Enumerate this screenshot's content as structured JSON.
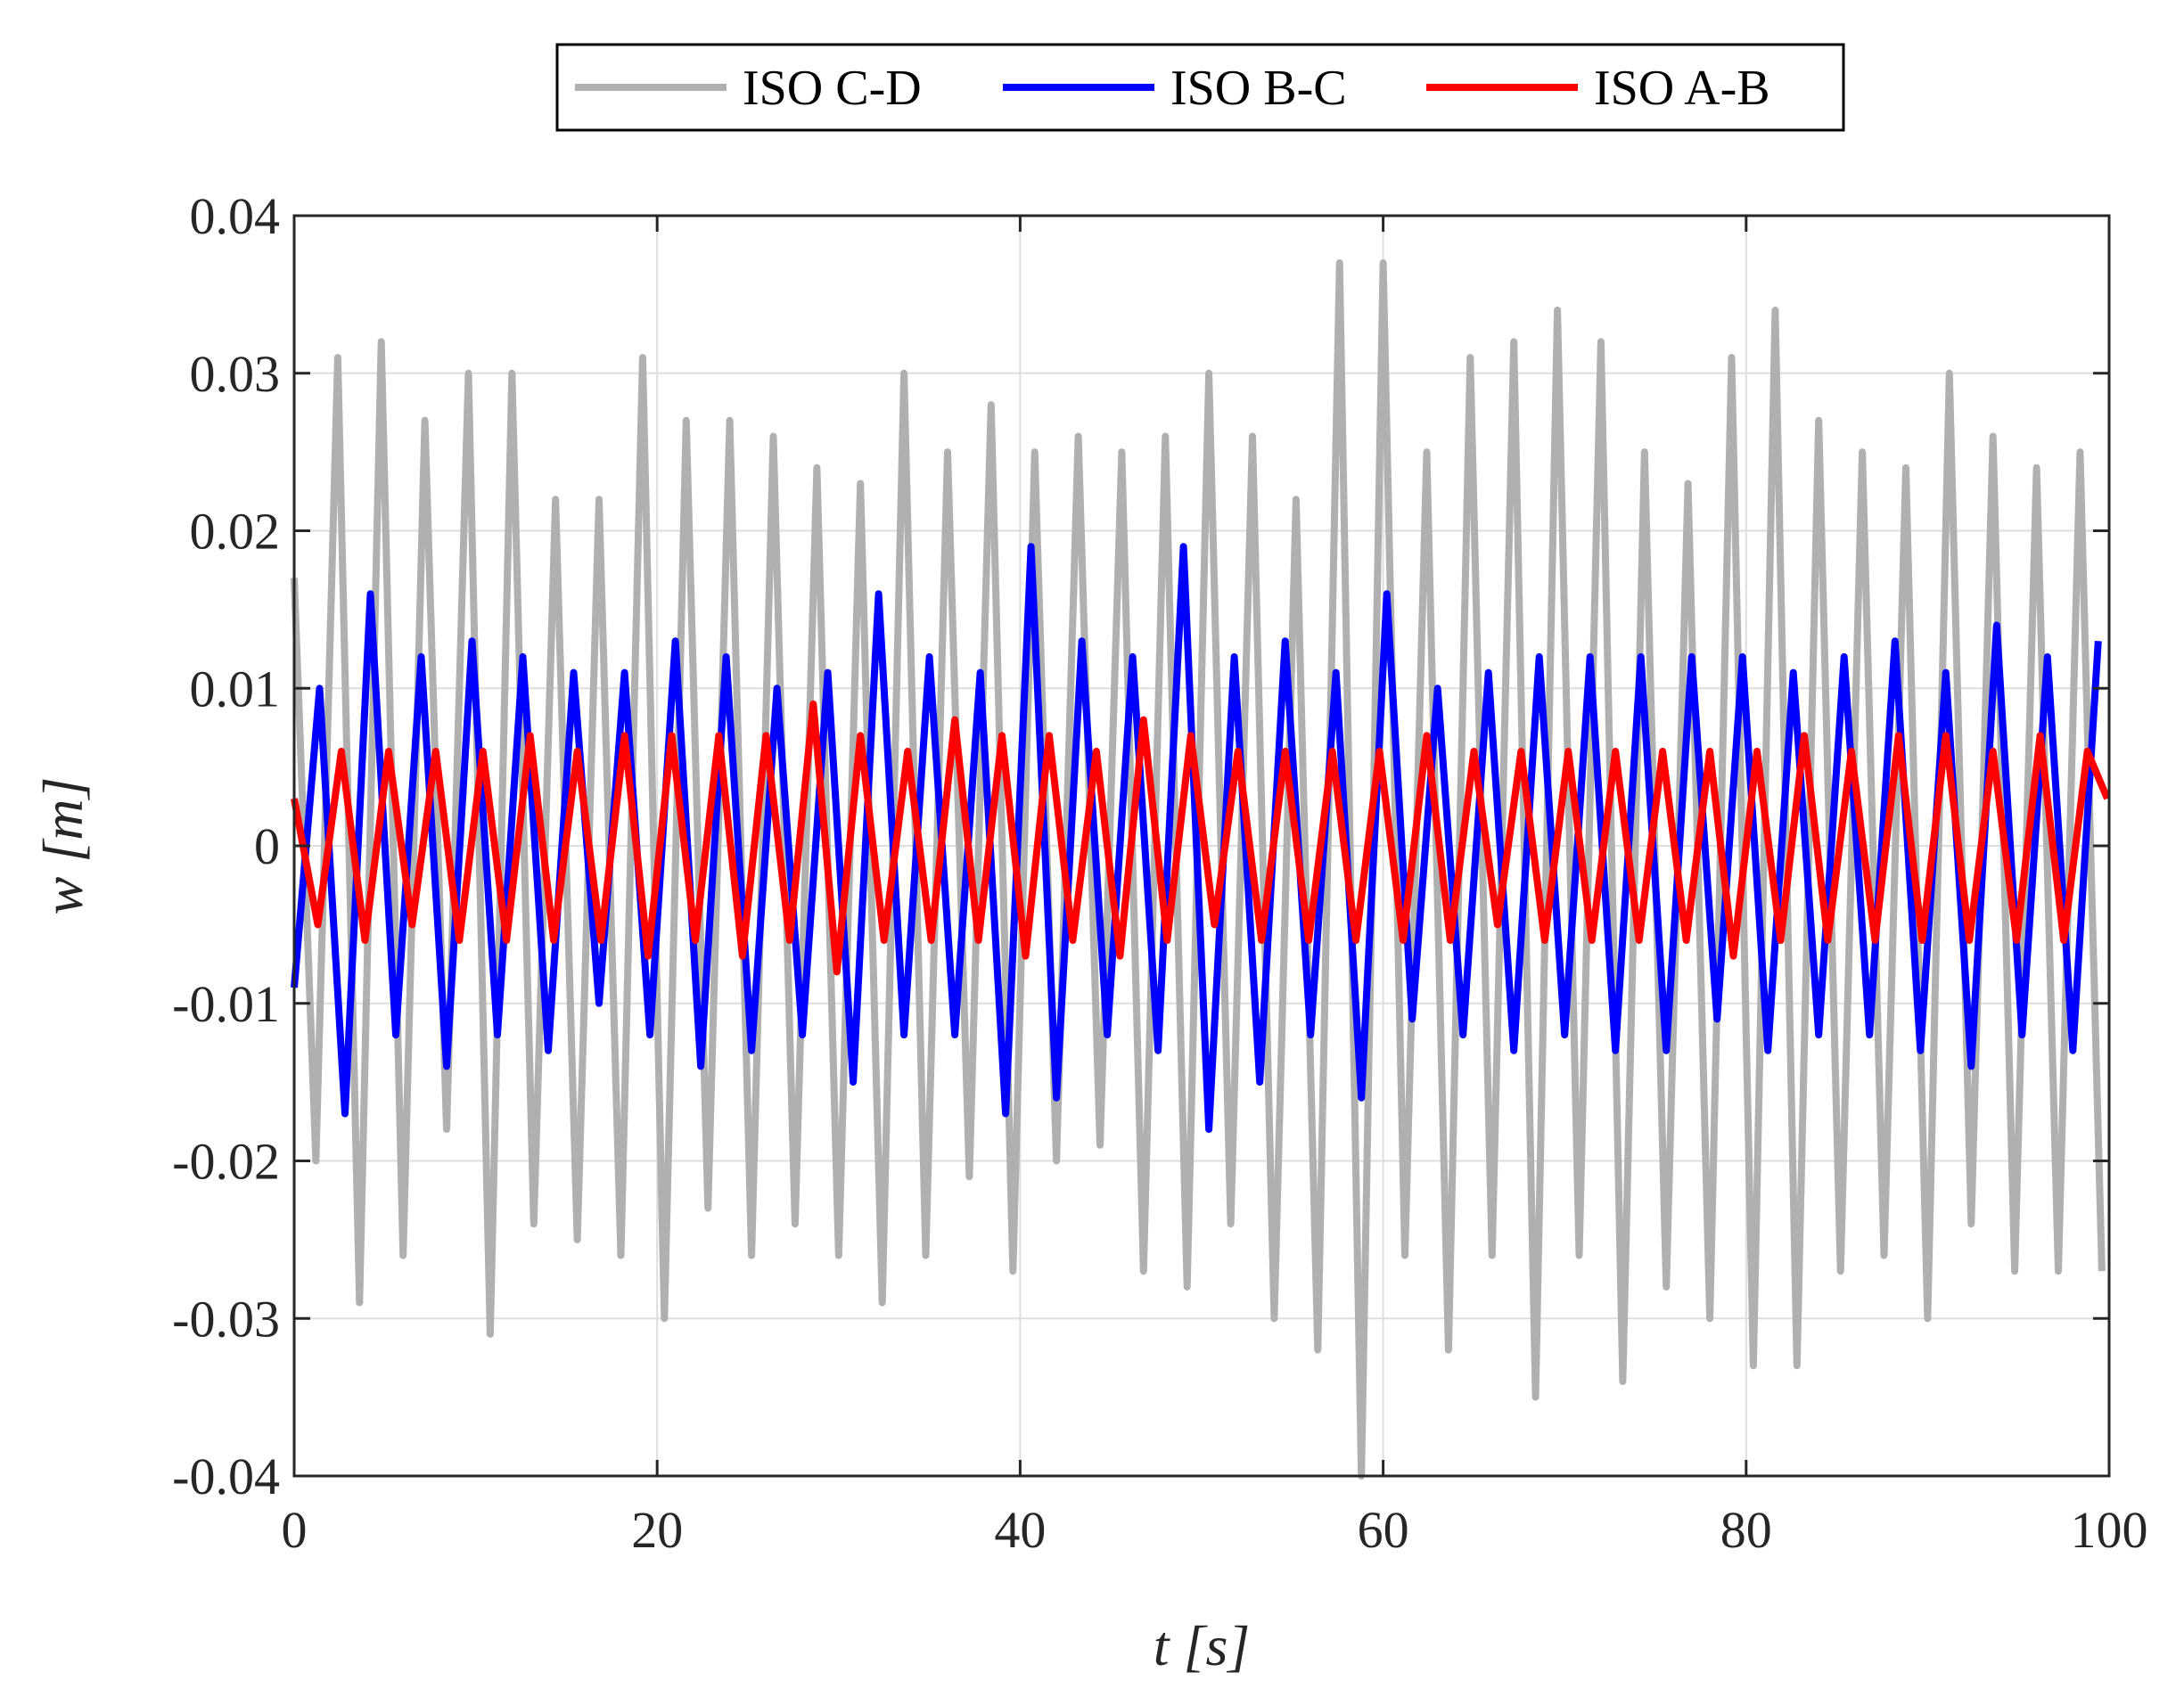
{
  "chart_data": {
    "type": "line",
    "xlabel": "t [s]",
    "ylabel": "w [m]",
    "xlim": [
      0,
      100
    ],
    "ylim": [
      -0.04,
      0.04
    ],
    "xticks": [
      0,
      20,
      40,
      60,
      80,
      100
    ],
    "xtick_labels": [
      "0",
      "20",
      "40",
      "60",
      "80",
      "100"
    ],
    "yticks": [
      -0.04,
      -0.03,
      -0.02,
      -0.01,
      0,
      0.01,
      0.02,
      0.03,
      0.04
    ],
    "ytick_labels": [
      "-0.04",
      "-0.03",
      "-0.02",
      "-0.01",
      "0",
      "0.01",
      "0.02",
      "0.03",
      "0.04"
    ],
    "grid": true,
    "legend_position": "top-center, outside, horizontal",
    "series": [
      {
        "name": "ISO C-D",
        "color": "#b0b0b0",
        "x": [
          0,
          1.2,
          2.4,
          3.6,
          4.8,
          6,
          7.2,
          8.4,
          9.6,
          10.8,
          12,
          13.2,
          14.4,
          15.6,
          16.8,
          18,
          19.2,
          20.4,
          21.6,
          22.8,
          24,
          25.2,
          26.4,
          27.6,
          28.8,
          30,
          31.2,
          32.4,
          33.6,
          34.8,
          36,
          37.2,
          38.4,
          39.6,
          40.8,
          42,
          43.2,
          44.4,
          45.6,
          46.8,
          48,
          49.2,
          50.4,
          51.6,
          52.8,
          54,
          55.2,
          56.4,
          57.6,
          58.8,
          60,
          61.2,
          62.4,
          63.6,
          64.8,
          66,
          67.2,
          68.4,
          69.6,
          70.8,
          72,
          73.2,
          74.4,
          75.6,
          76.8,
          78,
          79.2,
          80.4,
          81.6,
          82.8,
          84,
          85.2,
          86.4,
          87.6,
          88.8,
          90,
          91.2,
          92.4,
          93.6,
          94.8,
          96,
          97.2,
          98.4,
          99.6
        ],
        "y": [
          0.017,
          -0.02,
          0.031,
          -0.029,
          0.032,
          -0.026,
          0.027,
          -0.018,
          0.03,
          -0.031,
          0.03,
          -0.024,
          0.022,
          -0.025,
          0.022,
          -0.026,
          0.031,
          -0.03,
          0.027,
          -0.023,
          0.027,
          -0.026,
          0.026,
          -0.024,
          0.024,
          -0.026,
          0.023,
          -0.029,
          0.03,
          -0.026,
          0.025,
          -0.021,
          0.028,
          -0.027,
          0.025,
          -0.02,
          0.026,
          -0.019,
          0.025,
          -0.027,
          0.026,
          -0.028,
          0.03,
          -0.024,
          0.026,
          -0.03,
          0.022,
          -0.032,
          0.037,
          -0.04,
          0.037,
          -0.026,
          0.025,
          -0.032,
          0.031,
          -0.026,
          0.032,
          -0.035,
          0.034,
          -0.026,
          0.032,
          -0.034,
          0.025,
          -0.028,
          0.023,
          -0.03,
          0.031,
          -0.033,
          0.034,
          -0.033,
          0.027,
          -0.027,
          0.025,
          -0.026,
          0.024,
          -0.03,
          0.03,
          -0.024,
          0.026,
          -0.027,
          0.024,
          -0.027,
          0.025,
          -0.027
        ]
      },
      {
        "name": "ISO B-C",
        "color": "#0000ff",
        "x": [
          0,
          1.4,
          2.8,
          4.2,
          5.6,
          7,
          8.4,
          9.8,
          11.2,
          12.6,
          14,
          15.4,
          16.8,
          18.2,
          19.6,
          21,
          22.4,
          23.8,
          25.2,
          26.6,
          28,
          29.4,
          30.8,
          32.2,
          33.6,
          35,
          36.4,
          37.8,
          39.2,
          40.6,
          42,
          43.4,
          44.8,
          46.2,
          47.6,
          49,
          50.4,
          51.8,
          53.2,
          54.6,
          56,
          57.4,
          58.8,
          60.2,
          61.6,
          63,
          64.4,
          65.8,
          67.2,
          68.6,
          70,
          71.4,
          72.8,
          74.2,
          75.6,
          77,
          78.4,
          79.8,
          81.2,
          82.6,
          84,
          85.4,
          86.8,
          88.2,
          89.6,
          91,
          92.4,
          93.8,
          95.2,
          96.6,
          98,
          99.4
        ],
        "y": [
          -0.009,
          0.01,
          -0.017,
          0.016,
          -0.012,
          0.012,
          -0.014,
          0.013,
          -0.012,
          0.012,
          -0.013,
          0.011,
          -0.01,
          0.011,
          -0.012,
          0.013,
          -0.014,
          0.012,
          -0.013,
          0.01,
          -0.012,
          0.011,
          -0.015,
          0.016,
          -0.012,
          0.012,
          -0.012,
          0.011,
          -0.017,
          0.019,
          -0.016,
          0.013,
          -0.012,
          0.012,
          -0.013,
          0.019,
          -0.018,
          0.012,
          -0.015,
          0.013,
          -0.012,
          0.011,
          -0.016,
          0.016,
          -0.011,
          0.01,
          -0.012,
          0.011,
          -0.013,
          0.012,
          -0.012,
          0.012,
          -0.013,
          0.012,
          -0.013,
          0.012,
          -0.011,
          0.012,
          -0.013,
          0.011,
          -0.012,
          0.012,
          -0.012,
          0.013,
          -0.013,
          0.011,
          -0.014,
          0.014,
          -0.012,
          0.012,
          -0.013,
          0.013
        ]
      },
      {
        "name": "ISO A-B",
        "color": "#ff0000",
        "x": [
          0,
          1.3,
          2.6,
          3.9,
          5.2,
          6.5,
          7.8,
          9.1,
          10.4,
          11.7,
          13,
          14.3,
          15.6,
          16.9,
          18.2,
          19.5,
          20.8,
          22.1,
          23.4,
          24.7,
          26,
          27.3,
          28.6,
          29.9,
          31.2,
          32.5,
          33.8,
          35.1,
          36.4,
          37.7,
          39,
          40.3,
          41.6,
          42.9,
          44.2,
          45.5,
          46.8,
          48.1,
          49.4,
          50.7,
          52,
          53.3,
          54.6,
          55.9,
          57.2,
          58.5,
          59.8,
          61.1,
          62.4,
          63.7,
          65,
          66.3,
          67.6,
          68.9,
          70.2,
          71.5,
          72.8,
          74.1,
          75.4,
          76.7,
          78,
          79.3,
          80.6,
          81.9,
          83.2,
          84.5,
          85.8,
          87.1,
          88.4,
          89.7,
          91,
          92.3,
          93.6,
          94.9,
          96.2,
          97.5,
          98.8,
          99.9
        ],
        "y": [
          0.003,
          -0.005,
          0.006,
          -0.006,
          0.006,
          -0.005,
          0.006,
          -0.006,
          0.006,
          -0.006,
          0.007,
          -0.006,
          0.006,
          -0.006,
          0.007,
          -0.007,
          0.007,
          -0.006,
          0.007,
          -0.007,
          0.007,
          -0.006,
          0.009,
          -0.008,
          0.007,
          -0.006,
          0.006,
          -0.006,
          0.008,
          -0.006,
          0.007,
          -0.007,
          0.007,
          -0.006,
          0.006,
          -0.007,
          0.008,
          -0.006,
          0.007,
          -0.005,
          0.006,
          -0.006,
          0.006,
          -0.006,
          0.006,
          -0.006,
          0.006,
          -0.006,
          0.007,
          -0.006,
          0.006,
          -0.005,
          0.006,
          -0.006,
          0.006,
          -0.006,
          0.006,
          -0.006,
          0.006,
          -0.006,
          0.006,
          -0.007,
          0.006,
          -0.006,
          0.007,
          -0.006,
          0.006,
          -0.006,
          0.007,
          -0.006,
          0.007,
          -0.006,
          0.006,
          -0.006,
          0.007,
          -0.006,
          0.006,
          0.003
        ]
      }
    ]
  }
}
